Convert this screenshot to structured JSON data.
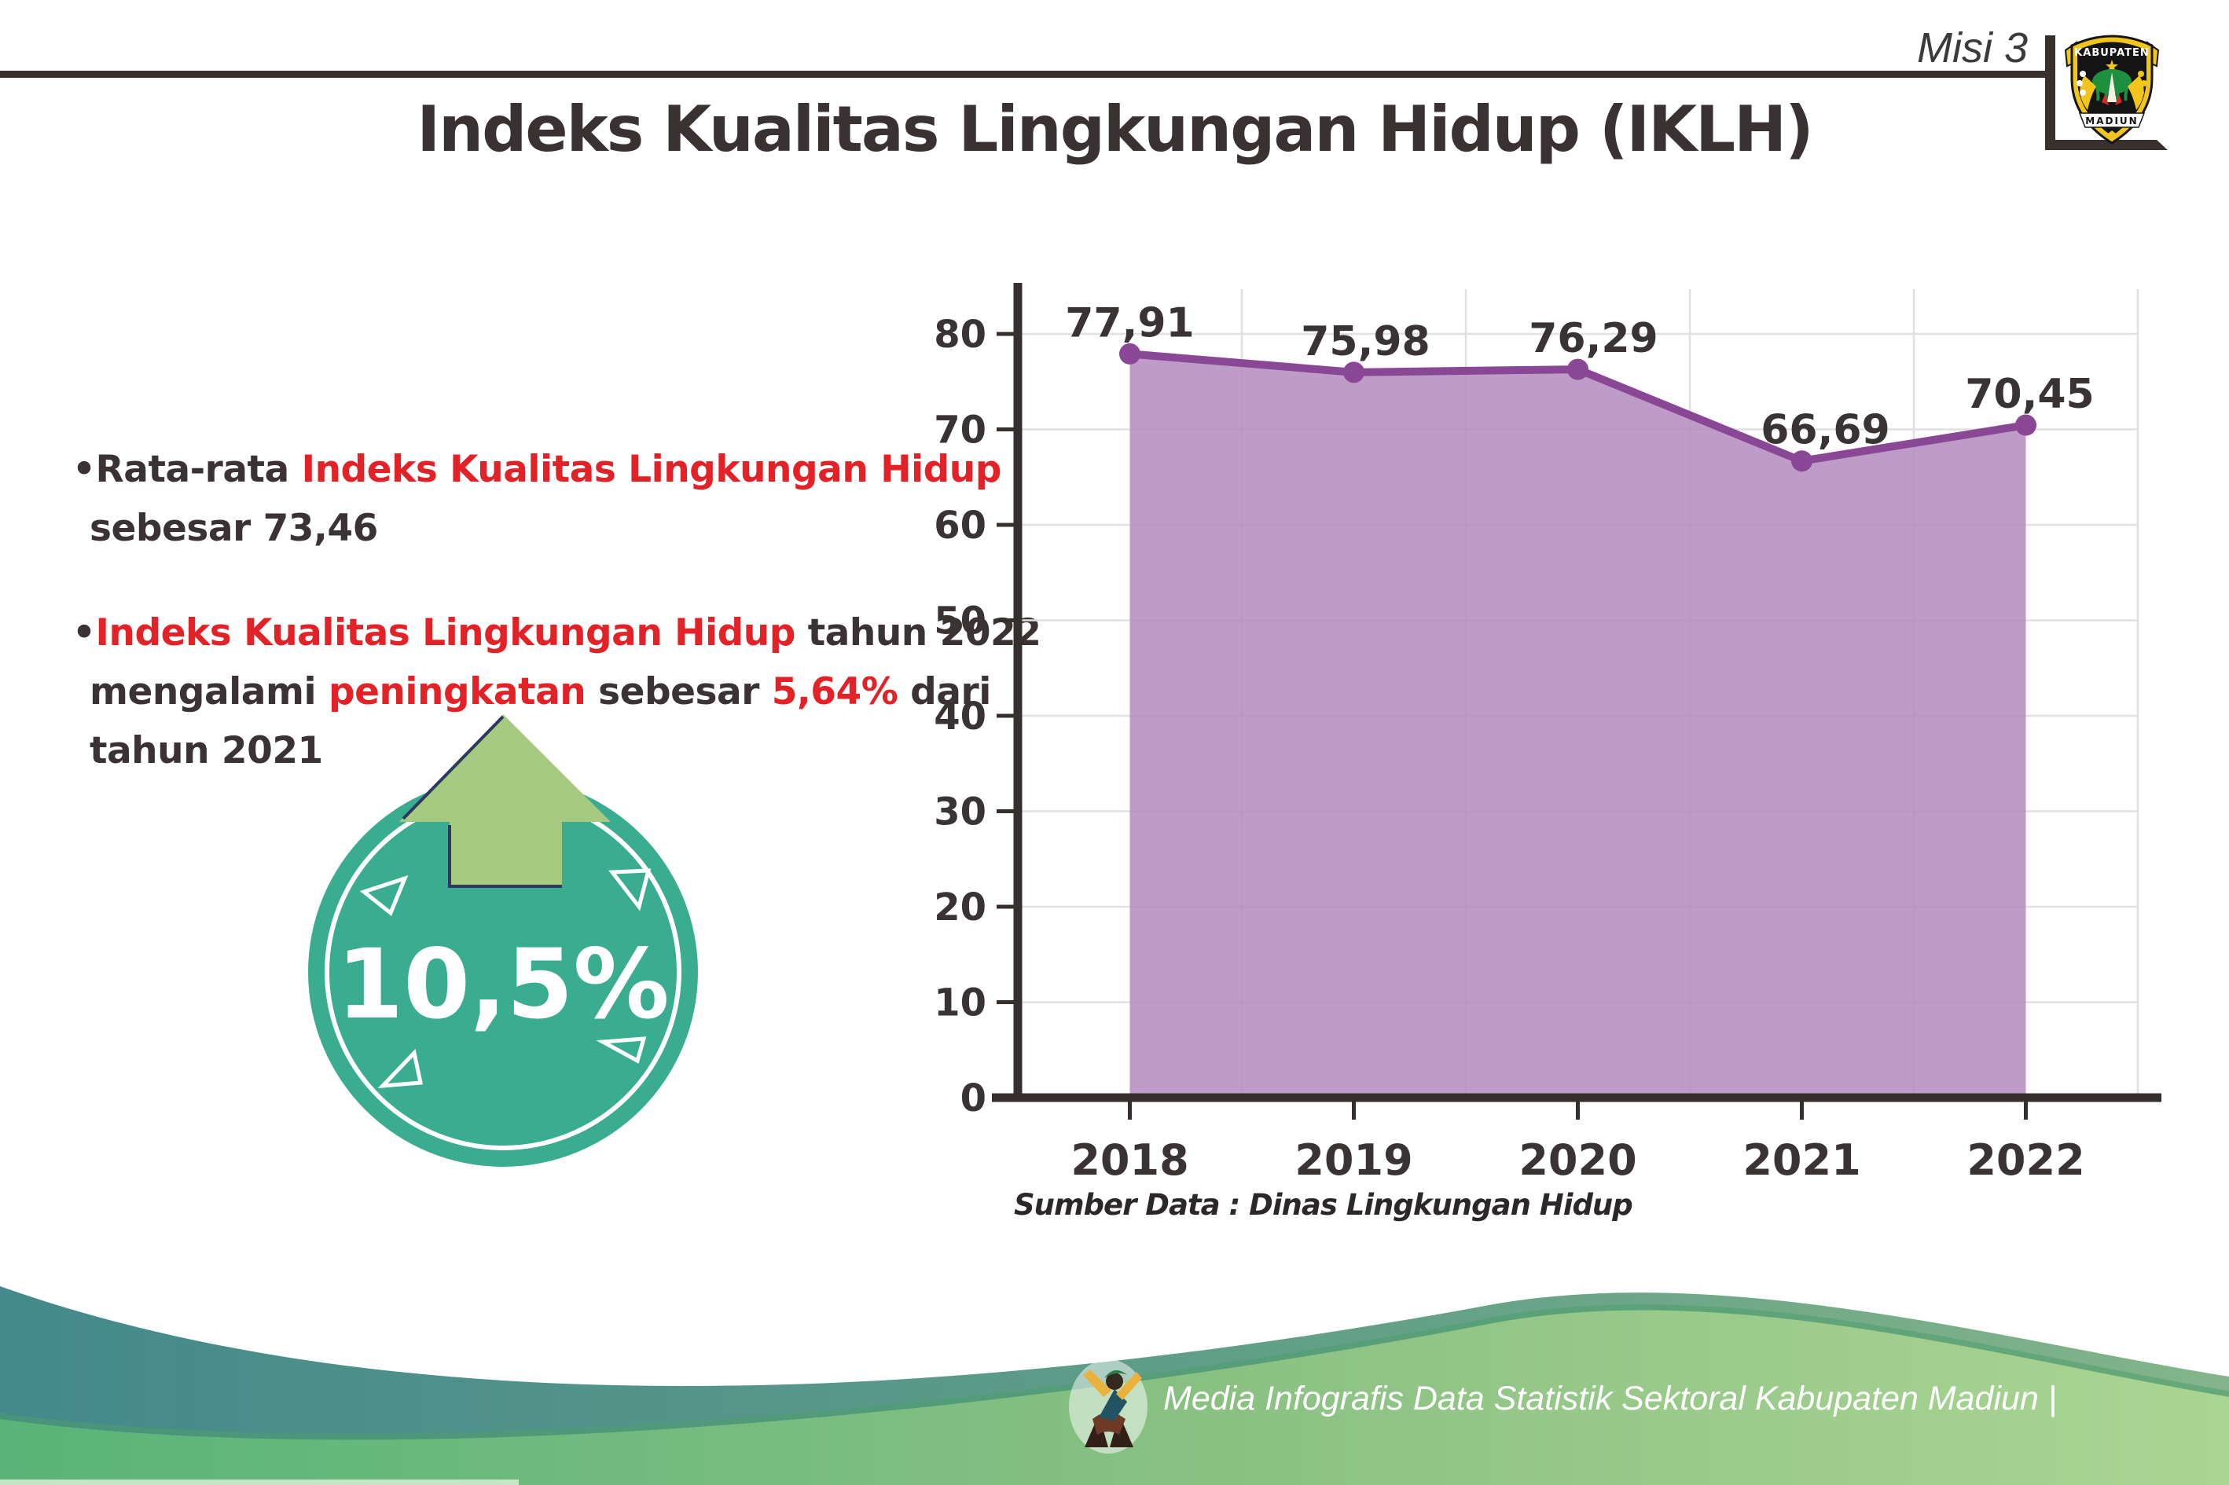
{
  "header": {
    "misi_label": "Misi 3",
    "title": "Indeks Kualitas Lingkungan Hidup (IKLH)",
    "logo": {
      "top_text": "KABUPATEN",
      "bottom_text": "MADIUN"
    }
  },
  "bullets": {
    "glyph": "•",
    "item1": {
      "line1_dark": "Rata-rata ",
      "line1_red": "Indeks Kualitas Lingkungan Hidup",
      "line2_dark": "sebesar 73,46"
    },
    "item2": {
      "line1_red": "Indeks Kualitas Lingkungan Hidup",
      "line1_dark": " tahun 2022",
      "line2_dark1": "mengalami ",
      "line2_red1": "peningkatan",
      "line2_dark2": " sebesar ",
      "line2_red2": "5,64%",
      "line2_dark3": " dari",
      "line3_dark": "tahun 2021"
    }
  },
  "badge": {
    "value": "10,5%"
  },
  "chart_data": {
    "type": "area",
    "categories": [
      "2018",
      "2019",
      "2020",
      "2021",
      "2022"
    ],
    "values": [
      77.91,
      75.98,
      76.29,
      66.69,
      70.45
    ],
    "point_labels": [
      "77,91",
      "75,98",
      "76,29",
      "66,69",
      "70,45"
    ],
    "title": "",
    "xlabel": "",
    "ylabel": "",
    "ylim": [
      0,
      80
    ],
    "ytick_step": 10,
    "grid": true,
    "legend": "none",
    "line_color": "#8a4795",
    "fill_color": "#b489bd",
    "source_note": "Sumber Data : Dinas Lingkungan Hidup"
  },
  "footer": {
    "credit": "Media Infografis Data Statistik Sektoral Kabupaten Madiun |"
  },
  "colors": {
    "accent_red": "#e32228",
    "text_dark": "#3a3233",
    "badge_teal": "#3aad90",
    "badge_arrow_green": "#a6ca80",
    "footer_teal": "#44898b",
    "footer_green": "#58b478"
  }
}
